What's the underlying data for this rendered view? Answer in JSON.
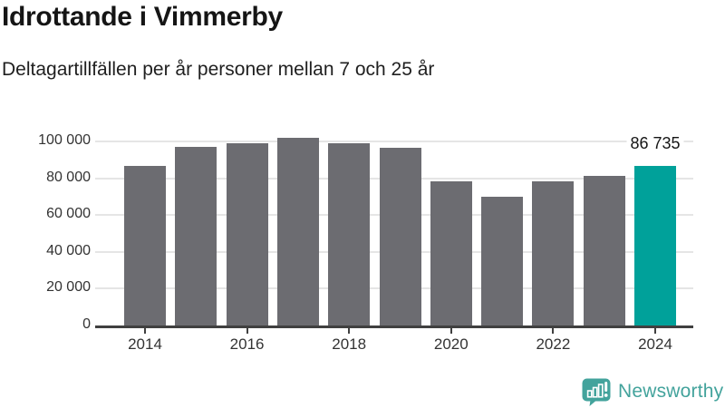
{
  "header": {
    "title": "Idrottande i Vimmerby",
    "subtitle": "Deltagartillfällen per år personer mellan 7 och 25 år"
  },
  "chart_data": {
    "type": "bar",
    "title": "Idrottande i Vimmerby",
    "subtitle": "Deltagartillfällen per år personer mellan 7 och 25 år",
    "categories": [
      "2014",
      "2015",
      "2016",
      "2017",
      "2018",
      "2019",
      "2020",
      "2021",
      "2022",
      "2023",
      "2024"
    ],
    "values": [
      86600,
      97200,
      98800,
      102100,
      98800,
      96500,
      78300,
      70000,
      78300,
      81100,
      86735
    ],
    "highlight_index": 10,
    "highlight_label": "86 735",
    "y_tick_values": [
      0,
      20000,
      40000,
      60000,
      80000,
      100000
    ],
    "y_tick_labels": [
      "0",
      "20 000",
      "40 000",
      "60 000",
      "80 000",
      "100 000"
    ],
    "x_tick_indices": [
      0,
      2,
      4,
      6,
      8,
      10
    ],
    "ylim": [
      0,
      107000
    ],
    "grid": true,
    "legend": "none",
    "bar_color": "#6c6c71",
    "highlight_color": "#00a19a",
    "gridline_color": "#e5e5e5",
    "axis_color": "#404040",
    "tick_label_color": "#333333"
  },
  "footer": {
    "brand": "Newsworthy",
    "brand_color": "#43a39c",
    "logo_icon": "bar-chart-speech-bubble-icon"
  }
}
